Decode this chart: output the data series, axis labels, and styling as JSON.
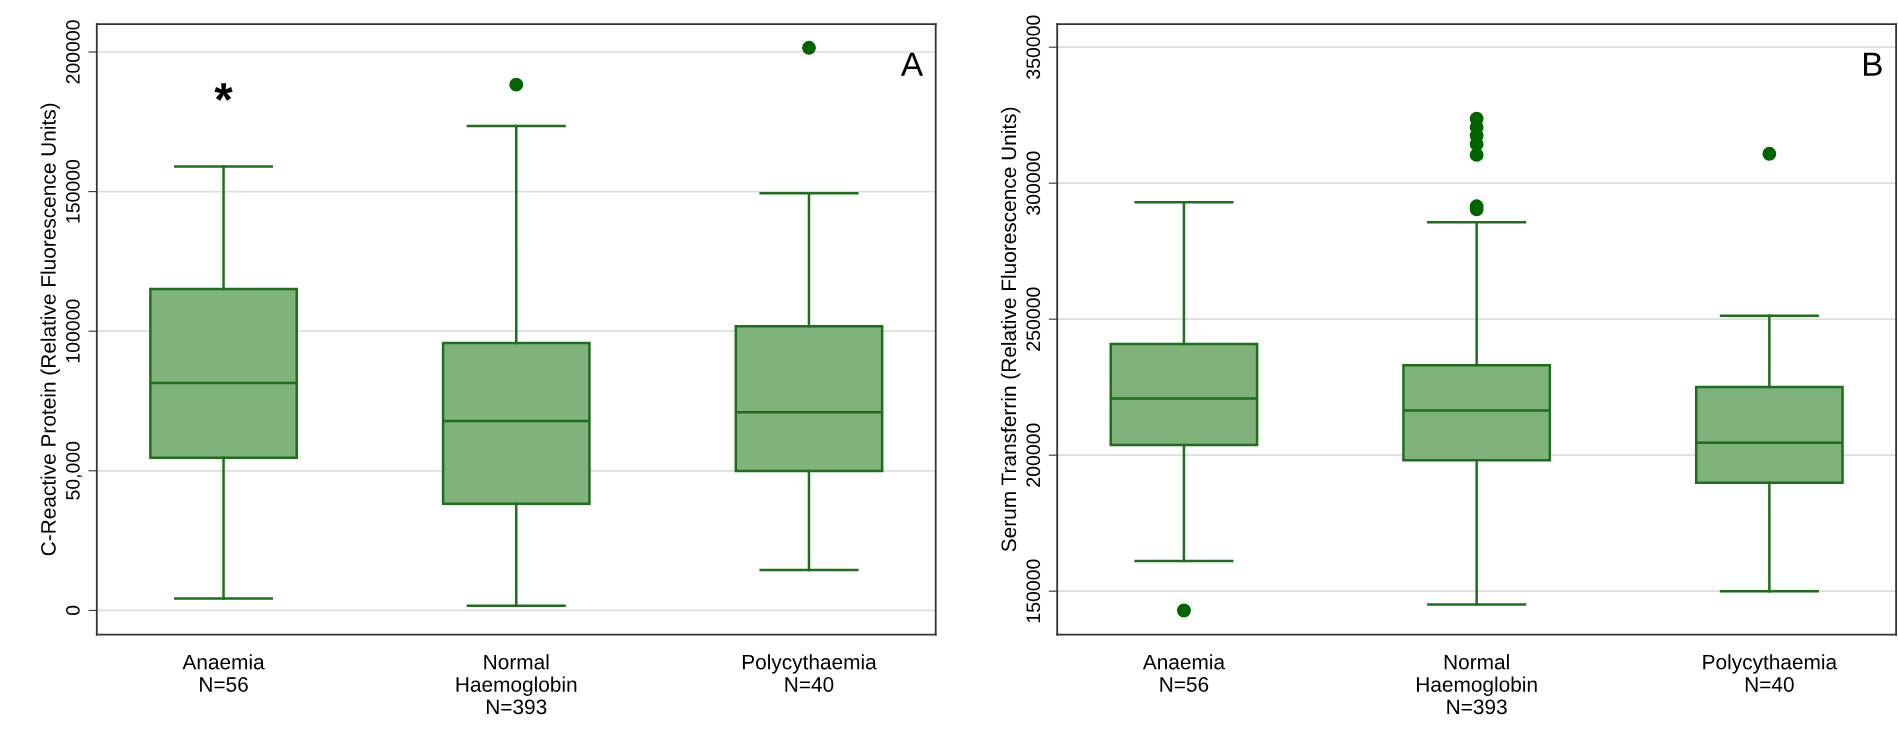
{
  "chart_data": [
    {
      "type": "box",
      "ylabel": "C-Reactive Protein (Relative Fluorescence Units)",
      "categories": [
        "Anaemia\nN=56",
        "Normal\nHaemoglobin\nN=393",
        "Polycythaemia\nN=40"
      ],
      "color": "#80b27c",
      "ylim": [
        -8700,
        210000
      ],
      "yticks": [
        0,
        {
          "value": 50000,
          "label": "50,000"
        },
        100000,
        150000,
        200000
      ],
      "grid": "y",
      "boxes": [
        {
          "low": 4300,
          "q1": 54700,
          "median": 81400,
          "q3": 115100,
          "high": 159000
        },
        {
          "low": 1700,
          "q1": 38200,
          "median": 67800,
          "q3": 95800,
          "high": 173500,
          "outliers": [
            188300
          ]
        },
        {
          "low": 14500,
          "q1": 49900,
          "median": 71000,
          "q3": 101800,
          "high": 149400,
          "outliers": [
            201500
          ]
        }
      ],
      "annotations": [
        "*",
        "A"
      ]
    },
    {
      "type": "box",
      "ylabel": "Serum Transferrin (Relative Fluorescence Units)",
      "categories": [
        "Anaemia\nN=56",
        "Normal\nHaemoglobin\nN=393",
        "Polycythaemia\nN=40"
      ],
      "color": "#80b27c",
      "ylim": [
        134000,
        358500
      ],
      "yticks": [
        150000,
        200000,
        250000,
        300000,
        350000
      ],
      "grid": "y",
      "boxes": [
        {
          "low": 161100,
          "q1": 203700,
          "median": 220800,
          "q3": 240900,
          "high": 293000,
          "outliers": [
            142900
          ]
        },
        {
          "low": 145100,
          "q1": 198100,
          "median": 216400,
          "q3": 233100,
          "high": 285600,
          "outliers": [
            290400,
            291500,
            310400,
            314400,
            317500,
            320600,
            323700
          ]
        },
        {
          "low": 150000,
          "q1": 189900,
          "median": 204600,
          "q3": 225100,
          "high": 251300,
          "outliers": [
            310800
          ]
        }
      ],
      "annotations": [
        "B"
      ]
    }
  ]
}
